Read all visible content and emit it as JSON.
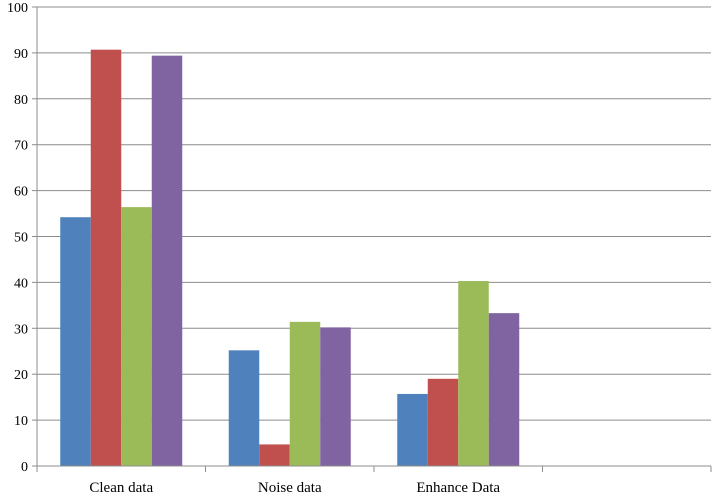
{
  "chart_data": {
    "type": "bar",
    "title": "",
    "xlabel": "",
    "ylabel": "",
    "ylim": [
      0,
      100
    ],
    "yticks": [
      0,
      10,
      20,
      30,
      40,
      50,
      60,
      70,
      80,
      90,
      100
    ],
    "yticks_labels": [
      "0",
      "10",
      "20",
      "30",
      "40",
      "50",
      "60",
      "70",
      "80",
      "90",
      "100"
    ],
    "categories": [
      "Clean data",
      "Noise data",
      "Enhance Data",
      ""
    ],
    "grid": true,
    "legend": "none",
    "series": [
      {
        "color": "#4F81BD",
        "values": [
          54.2,
          25.2,
          15.7,
          null
        ]
      },
      {
        "color": "#C0504D",
        "values": [
          90.7,
          4.7,
          19.0,
          null
        ]
      },
      {
        "color": "#9BBB59",
        "values": [
          56.4,
          31.4,
          40.3,
          null
        ]
      },
      {
        "color": "#8064A2",
        "values": [
          89.4,
          30.2,
          33.3,
          null
        ]
      }
    ]
  }
}
